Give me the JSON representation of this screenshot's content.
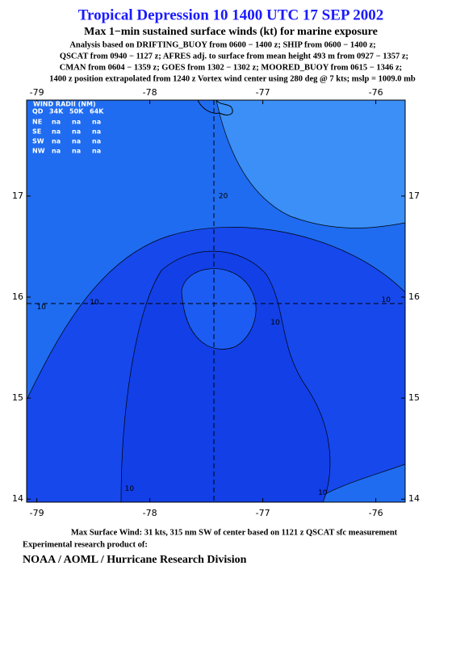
{
  "header": {
    "title": "Tropical Depression 10 1400 UTC 17 SEP 2002",
    "subtitle": "Max 1−min sustained surface winds (kt) for marine exposure",
    "analysis": [
      "Analysis based on  DRIFTING_BUOY from 0600 − 1400 z;  SHIP from 0600 − 1400 z;",
      "QSCAT from 0940 − 1127 z;  AFRES adj. to surface from mean height 493 m from 0927 − 1357 z;",
      "CMAN from 0604 − 1359 z;  GOES from 1302 − 1302 z;  MOORED_BUOY from 0615 − 1346 z;",
      "1400 z position extrapolated from 1240 z Vortex wind center using 280 deg @ 7 kts; mslp = 1009.0 mb"
    ]
  },
  "map": {
    "xlim": [
      -79.09,
      -75.74
    ],
    "ylim": [
      13.97,
      17.95
    ],
    "xticks": [
      -79,
      -78,
      -77,
      -76
    ],
    "yticks": [
      14,
      15,
      16,
      17
    ],
    "wind_radii": {
      "title": "WIND RADII (NM)",
      "columns": [
        "QD",
        "34K",
        "50K",
        "64K"
      ],
      "rows": [
        [
          "NE",
          "na",
          "na",
          "na"
        ],
        [
          "SE",
          "na",
          "na",
          "na"
        ],
        [
          "SW",
          "na",
          "na",
          "na"
        ],
        [
          "NW",
          "na",
          "na",
          "na"
        ]
      ]
    },
    "contour_labels": [
      {
        "text": "20",
        "lon": -77.35,
        "lat": 17.0
      },
      {
        "text": "10",
        "lon": -78.96,
        "lat": 15.9
      },
      {
        "text": "10",
        "lon": -78.49,
        "lat": 15.95
      },
      {
        "text": "10",
        "lon": -76.89,
        "lat": 15.75
      },
      {
        "text": "10",
        "lon": -75.91,
        "lat": 15.97
      },
      {
        "text": "10",
        "lon": -78.18,
        "lat": 14.1
      },
      {
        "text": "10",
        "lon": -76.47,
        "lat": 14.06
      }
    ]
  },
  "footer": {
    "max_wind": "Max Surface Wind: 31 kts, 315 nm SW of center based on 1121 z QSCAT sfc measurement",
    "experimental": "Experimental research product of:",
    "organization": "NOAA / AOML / Hurricane Research Division"
  }
}
